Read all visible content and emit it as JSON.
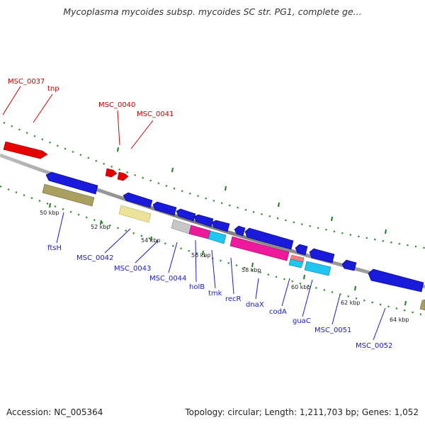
{
  "title": "Mycoplasma mycoides subsp. mycoides SC str. PG1, complete ge...",
  "footer": {
    "accession": "Accession: NC_005364",
    "summary": "Topology: circular; Length: 1,211,703 bp; Genes: 1,052"
  },
  "colors": {
    "red_feature": "#e60000",
    "blue_feature": "#1a1adc",
    "olive_feature": "#a9a060",
    "cream_feature": "#ece39a",
    "grey_feature": "#c7c7c7",
    "pink_feature": "#ee1a9c",
    "cyan_feature": "#1ec6f0",
    "light_pink_feature": "#f08080",
    "backbone": "#8a8a8a",
    "tick": "#1e7a1e",
    "red_label": "#cc0000",
    "blue_label": "#1a1acc"
  },
  "scale_labels": [
    "50 kbp",
    "52 kbp",
    "54 kbp",
    "56 kbp",
    "58 kbp",
    "60 kbp",
    "62 kbp",
    "64 kbp"
  ],
  "forward_genes": [
    "MSC_0037",
    "tnp",
    "MSC_0040",
    "MSC_0041"
  ],
  "reverse_genes": [
    "ftsH",
    "MSC_0042",
    "MSC_0043",
    "MSC_0044",
    "holB",
    "tmk",
    "recR",
    "dnaX",
    "codA",
    "guaC",
    "MSC_0051",
    "MSC_0052"
  ]
}
